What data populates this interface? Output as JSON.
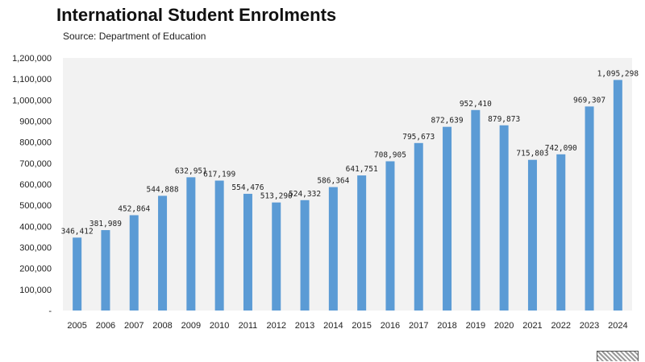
{
  "chart_data": {
    "type": "bar",
    "title": "International Student Enrolments",
    "subtitle": "Source: Department of Education",
    "xlabel": "",
    "ylabel": "",
    "ylim": [
      0,
      1200000
    ],
    "yticks": [
      "-",
      "100,000",
      "200,000",
      "300,000",
      "400,000",
      "500,000",
      "600,000",
      "700,000",
      "800,000",
      "900,000",
      "1,000,000",
      "1,100,000",
      "1,200,000"
    ],
    "categories": [
      "2005",
      "2006",
      "2007",
      "2008",
      "2009",
      "2010",
      "2011",
      "2012",
      "2013",
      "2014",
      "2015",
      "2016",
      "2017",
      "2018",
      "2019",
      "2020",
      "2021",
      "2022",
      "2023",
      "2024"
    ],
    "values": [
      346412,
      381989,
      452864,
      544888,
      632951,
      617199,
      554476,
      513290,
      524332,
      586364,
      641751,
      708905,
      795673,
      872639,
      952410,
      879873,
      715803,
      742090,
      969307,
      1095298
    ],
    "labels": [
      "346,412",
      "381,989",
      "452,864",
      "544,888",
      "632,951",
      "617,199",
      "554,476",
      "513,290",
      "524,332",
      "586,364",
      "641,751",
      "708,905",
      "795,673",
      "872,639",
      "952,410",
      "879,873",
      "715,803",
      "742,090",
      "969,307",
      "1,095,298"
    ],
    "bar_color": "#5b9bd5",
    "plot_background": "#f2f2f2",
    "grid": false,
    "legend": "none"
  }
}
